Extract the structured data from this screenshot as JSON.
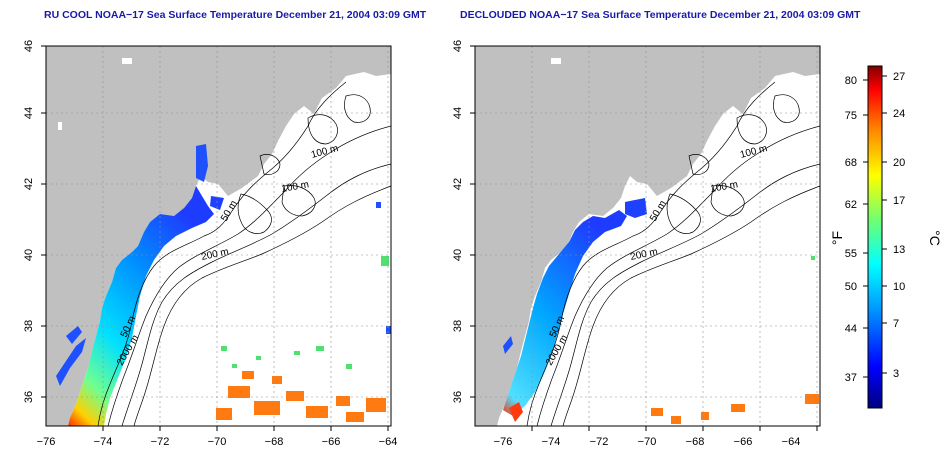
{
  "panels": [
    {
      "title": "RU COOL NOAA−17 Sea Surface Temperature December 21, 2004 03:09 GMT",
      "contour_labels": [
        "100 m",
        "100 m",
        "50 m",
        "200 m",
        "50 m",
        "2000 m"
      ]
    },
    {
      "title": "DECLOUDED NOAA−17 Sea Surface Temperature December 21, 2004 03:09 GMT",
      "contour_labels": [
        "100 m",
        "100 m",
        "50 m",
        "200 m",
        "50 m",
        "2000 m"
      ]
    }
  ],
  "axes": {
    "lon_ticks": [
      "−76",
      "−74",
      "−72",
      "−70",
      "−68",
      "−66",
      "−64"
    ],
    "lat_ticks": [
      "46",
      "44",
      "42",
      "40",
      "38",
      "36"
    ]
  },
  "colorbar": {
    "f_label": "°F",
    "c_label": "°C",
    "f_ticks": [
      "80",
      "75",
      "68",
      "62",
      "55",
      "50",
      "44",
      "37"
    ],
    "c_ticks": [
      "27",
      "24",
      "20",
      "17",
      "13",
      "10",
      "7",
      "3"
    ]
  },
  "colors": {
    "land": "#c0c0c0",
    "title": "#1a1aa8",
    "sst_cold": "#1e3cff",
    "sst_warm": "#ff6a00"
  }
}
